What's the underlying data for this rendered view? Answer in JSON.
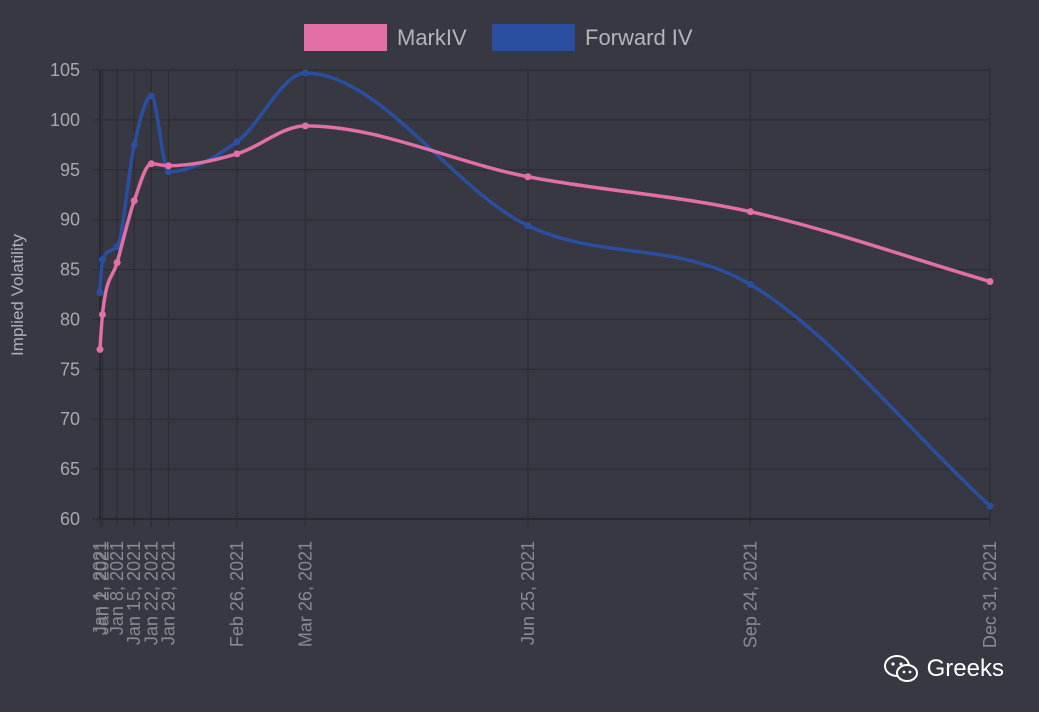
{
  "chart_data": {
    "type": "line",
    "ylabel": "Implied Volatility",
    "xlabel": "",
    "ylim": [
      60,
      105
    ],
    "yticks": [
      60,
      65,
      70,
      75,
      80,
      85,
      90,
      95,
      100,
      105
    ],
    "grid": true,
    "legend_position": "top",
    "x": [
      "Jan 1, 2021",
      "Jan 2, 2021",
      "Jan 8, 2021",
      "Jan 15, 2021",
      "Jan 22, 2021",
      "Jan 29, 2021",
      "Feb 26, 2021",
      "Mar 26, 2021",
      "Jun 25, 2021",
      "Sep 24, 2021",
      "Dec 31, 2021"
    ],
    "x_days": [
      0,
      1,
      7,
      14,
      21,
      28,
      56,
      84,
      175,
      266,
      364
    ],
    "series": [
      {
        "name": "MarkIV",
        "color": "#e26fa6",
        "values": [
          77.0,
          80.5,
          85.7,
          91.9,
          95.6,
          95.4,
          96.6,
          99.4,
          94.3,
          90.8,
          83.8
        ]
      },
      {
        "name": "Forward IV",
        "color": "#2a4fa0",
        "values": [
          82.7,
          86.0,
          87.3,
          97.5,
          102.4,
          94.8,
          97.8,
          104.7,
          89.4,
          83.5,
          61.3
        ]
      }
    ]
  },
  "watermark": {
    "text": "Greeks",
    "icon": "wechat-icon"
  }
}
